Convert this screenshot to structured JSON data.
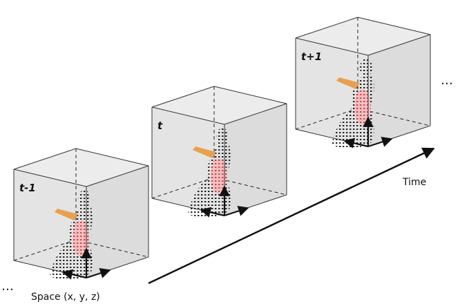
{
  "frames": [
    {
      "label": "t-1"
    },
    {
      "label": "t"
    },
    {
      "label": "t+1"
    }
  ],
  "time_axis": {
    "label": "Time"
  },
  "space_axis": {
    "label": "Space (x, y, z)"
  },
  "continuation": [
    "…",
    "…"
  ]
}
